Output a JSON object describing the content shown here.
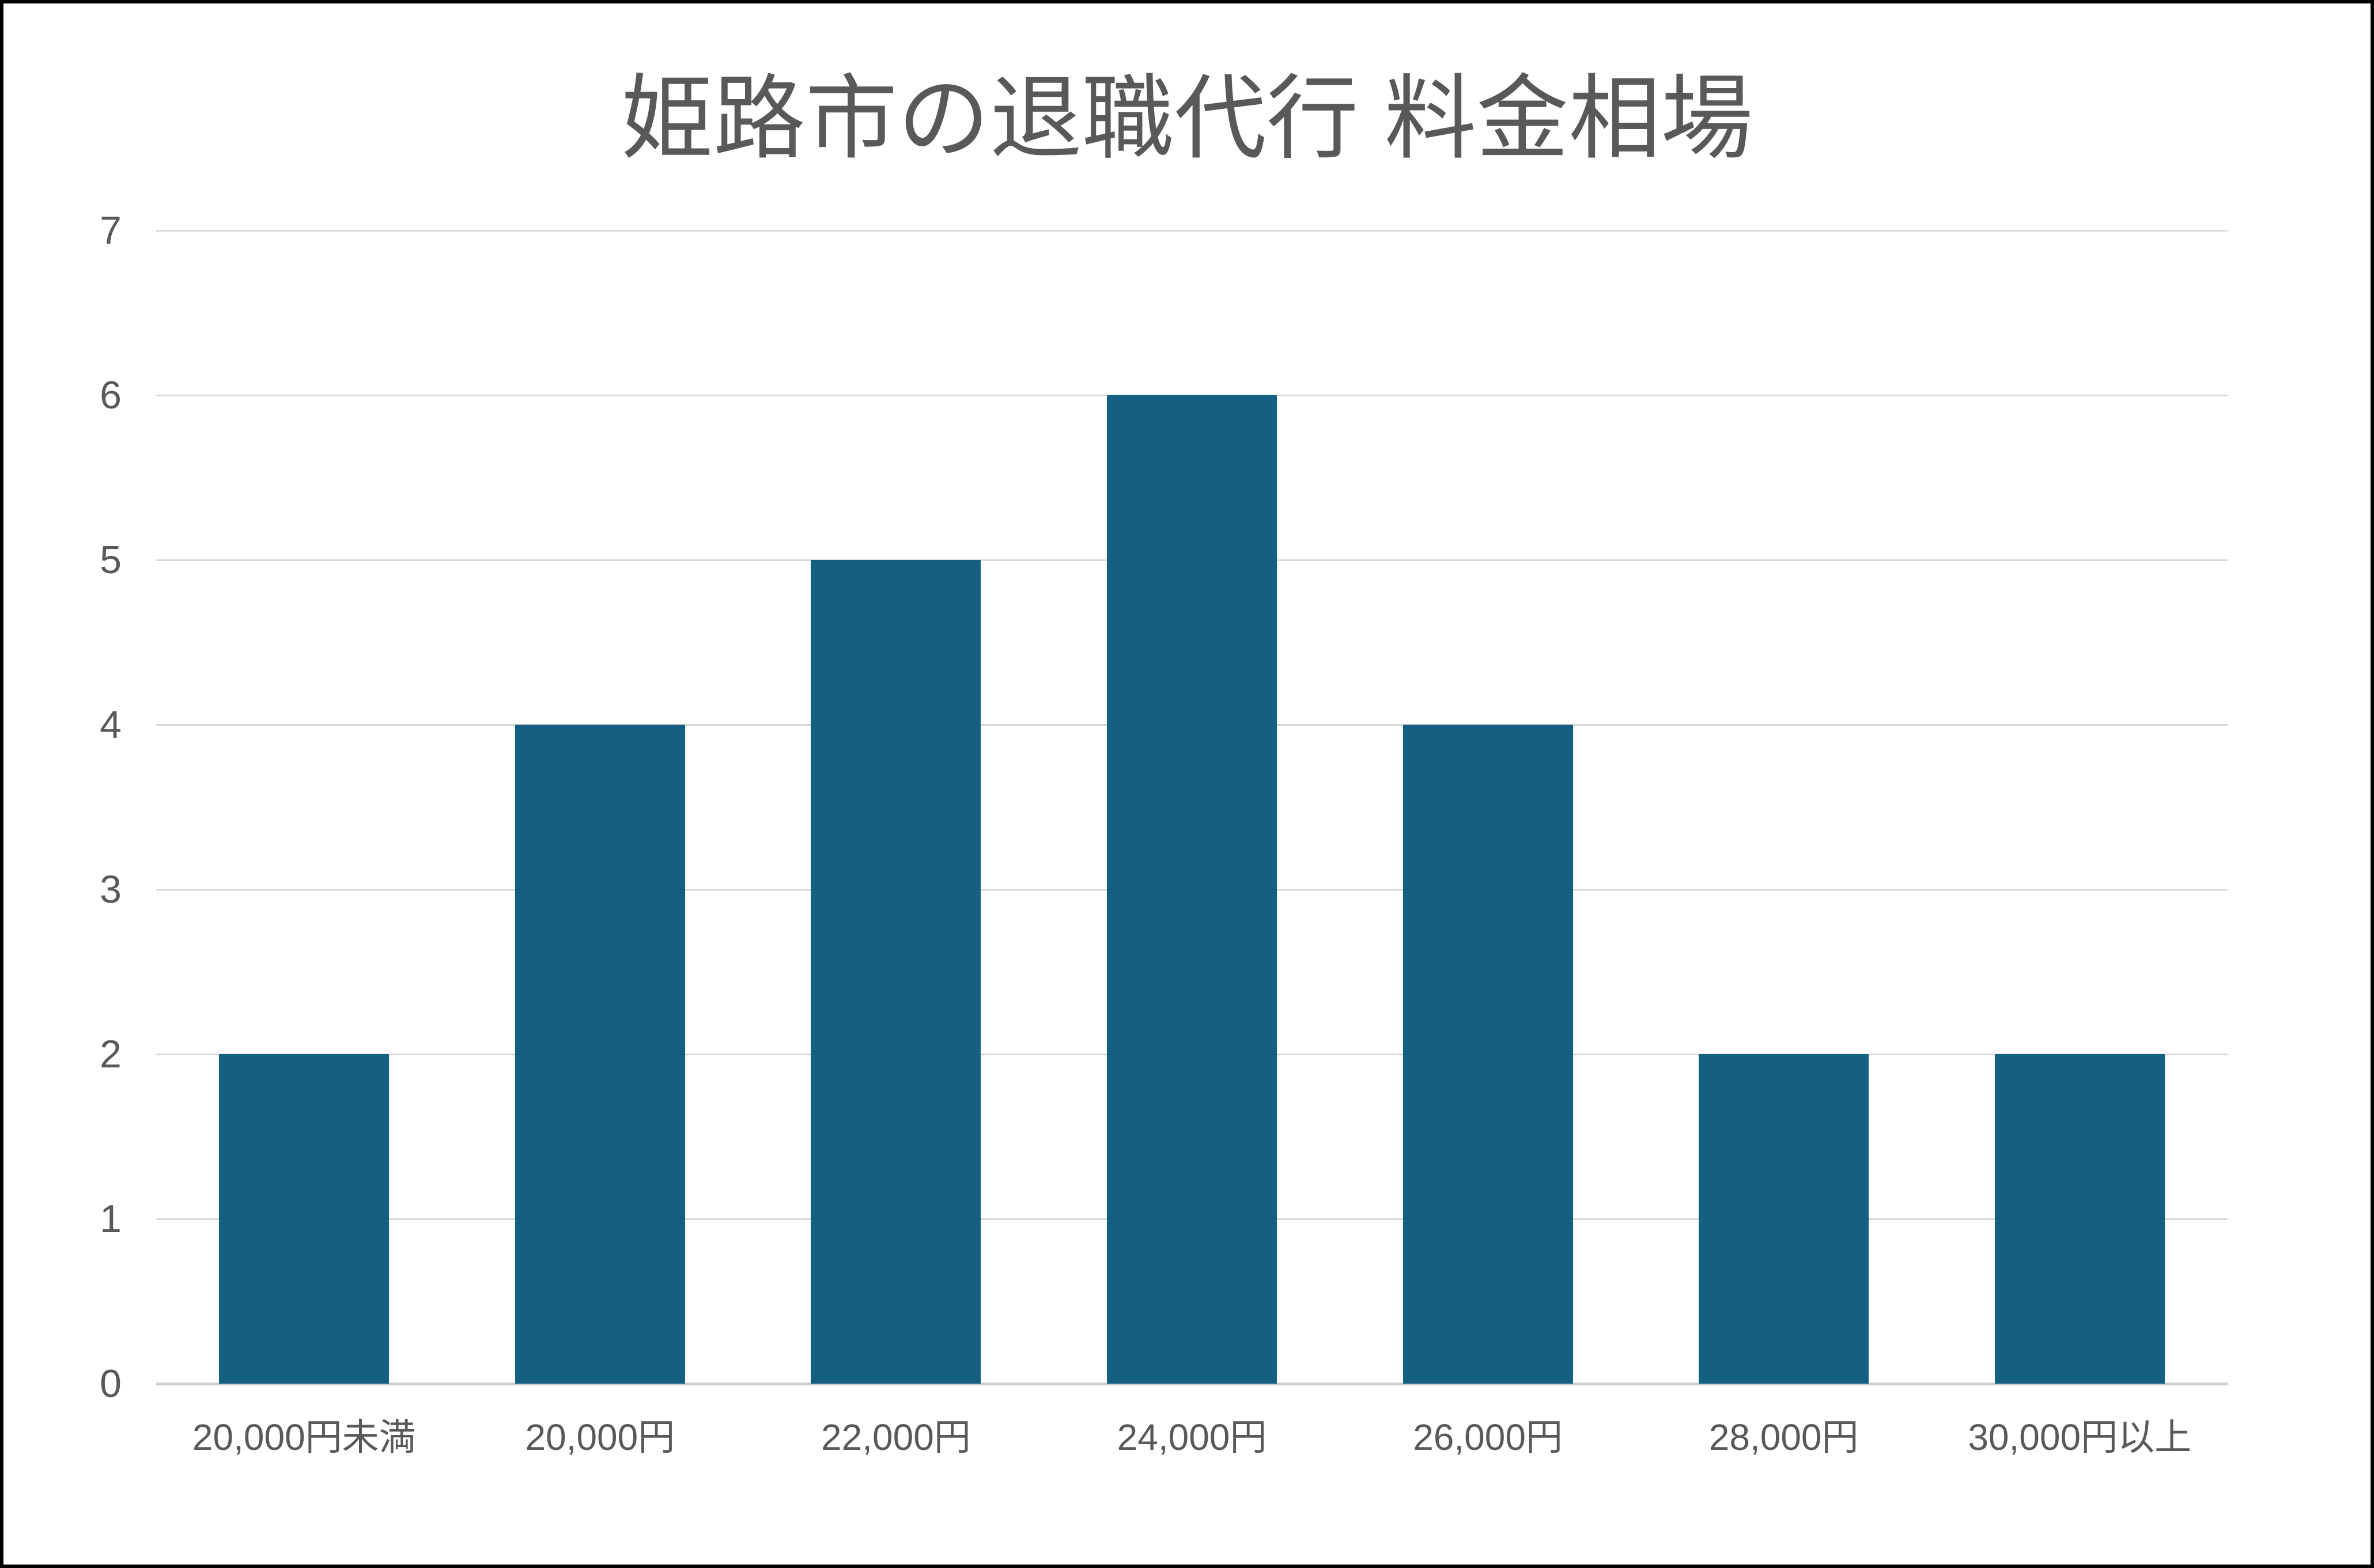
{
  "chart_data": {
    "type": "bar",
    "title": "姫路市の退職代行 料金相場",
    "categories": [
      "20,000円未満",
      "20,000円",
      "22,000円",
      "24,000円",
      "26,000円",
      "28,000円",
      "30,000円以上"
    ],
    "values": [
      2,
      4,
      5,
      6,
      4,
      2,
      2
    ],
    "xlabel": "",
    "ylabel": "",
    "ylim": [
      0,
      7
    ],
    "yticks": [
      0,
      1,
      2,
      3,
      4,
      5,
      6,
      7
    ],
    "grid": "horizontal",
    "legend": "none",
    "colors": {
      "bar": "#156082",
      "text": "#595959",
      "gridline": "#d9d9d9",
      "axis_line": "#d0d0d0",
      "background": "#ffffff",
      "frame_border": "#000000"
    }
  }
}
